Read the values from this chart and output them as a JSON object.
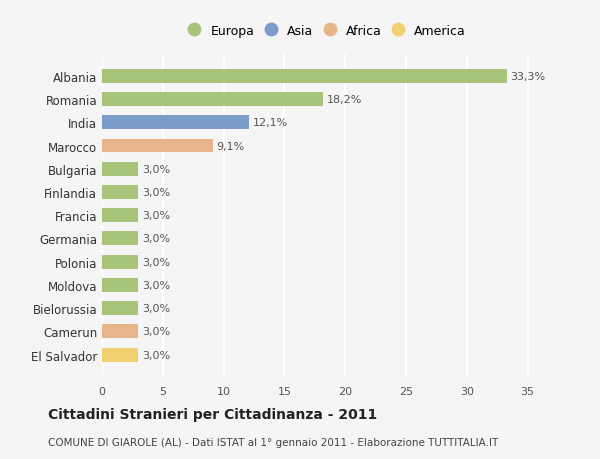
{
  "categories": [
    "Albania",
    "Romania",
    "India",
    "Marocco",
    "Bulgaria",
    "Finlandia",
    "Francia",
    "Germania",
    "Polonia",
    "Moldova",
    "Bielorussia",
    "Camerun",
    "El Salvador"
  ],
  "values": [
    33.3,
    18.2,
    12.1,
    9.1,
    3.0,
    3.0,
    3.0,
    3.0,
    3.0,
    3.0,
    3.0,
    3.0,
    3.0
  ],
  "labels": [
    "33,3%",
    "18,2%",
    "12,1%",
    "9,1%",
    "3,0%",
    "3,0%",
    "3,0%",
    "3,0%",
    "3,0%",
    "3,0%",
    "3,0%",
    "3,0%",
    "3,0%"
  ],
  "colors": [
    "#a8c47a",
    "#a8c47a",
    "#7b9dc7",
    "#e8b48a",
    "#a8c47a",
    "#a8c47a",
    "#a8c47a",
    "#a8c47a",
    "#a8c47a",
    "#a8c47a",
    "#a8c47a",
    "#e8b48a",
    "#f0d070"
  ],
  "legend_labels": [
    "Europa",
    "Asia",
    "Africa",
    "America"
  ],
  "legend_colors": [
    "#a8c47a",
    "#7b9dc7",
    "#e8b48a",
    "#f0d070"
  ],
  "title": "Cittadini Stranieri per Cittadinanza - 2011",
  "subtitle": "COMUNE DI GIAROLE (AL) - Dati ISTAT al 1° gennaio 2011 - Elaborazione TUTTITALIA.IT",
  "xlim": [
    0,
    37
  ],
  "xticks": [
    0,
    5,
    10,
    15,
    20,
    25,
    30,
    35
  ],
  "bg_color": "#f5f5f5",
  "grid_color": "#ffffff",
  "bar_height": 0.6
}
